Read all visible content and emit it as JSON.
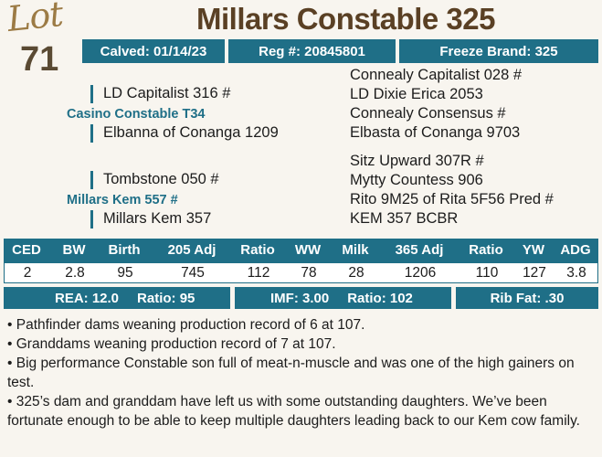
{
  "lot": {
    "label": "Lot",
    "number": "71"
  },
  "title": "Millars Constable 325",
  "info_bar": {
    "calved": "Calved: 01/14/23",
    "reg": "Reg #: 20845801",
    "brand": "Freeze Brand: 325"
  },
  "pedigree": {
    "sire_line": {
      "sire": "LD Capitalist 316 #",
      "animal": "Casino Constable T34",
      "dam": "Elbanna of Conanga 1209",
      "far_right": [
        "Connealy Capitalist 028 #",
        "LD Dixie Erica 2053",
        "Connealy Consensus #",
        "Elbasta of Conanga 9703"
      ]
    },
    "dam_line": {
      "sire": "Tombstone 050 #",
      "animal": "Millars Kem 557 #",
      "dam": "Millars Kem 357",
      "far_right": [
        "Sitz Upward 307R #",
        "Mytty Countess 906",
        "Rito 9M25 of Rita 5F56 Pred #",
        "KEM 357 BCBR"
      ]
    }
  },
  "epd": {
    "headers": [
      "CED",
      "BW",
      "Birth",
      "205 Adj",
      "Ratio",
      "WW",
      "Milk",
      "365 Adj",
      "Ratio",
      "YW",
      "ADG"
    ],
    "values": [
      "2",
      "2.8",
      "95",
      "745",
      "112",
      "78",
      "28",
      "1206",
      "110",
      "127",
      "3.8"
    ]
  },
  "carcass": {
    "rea": "REA: 12.0",
    "rea_ratio": "Ratio: 95",
    "imf": "IMF: 3.00",
    "imf_ratio": "Ratio: 102",
    "rib_fat": "Rib Fat: .30"
  },
  "notes": [
    "• Pathfinder dams weaning production record of 6 at 107.",
    "• Granddams weaning production record of 7 at 107.",
    "• Big performance Constable son full of meat-n-muscle and was one of the high gainers on test.",
    "• 325’s dam and granddam have left us with some outstanding daughters. We’ve been fortunate enough to be able to keep multiple daughters leading back to our Kem cow family."
  ],
  "colors": {
    "accent": "#1f6f87",
    "title": "#5a4024",
    "lot": "#9c7b45"
  }
}
